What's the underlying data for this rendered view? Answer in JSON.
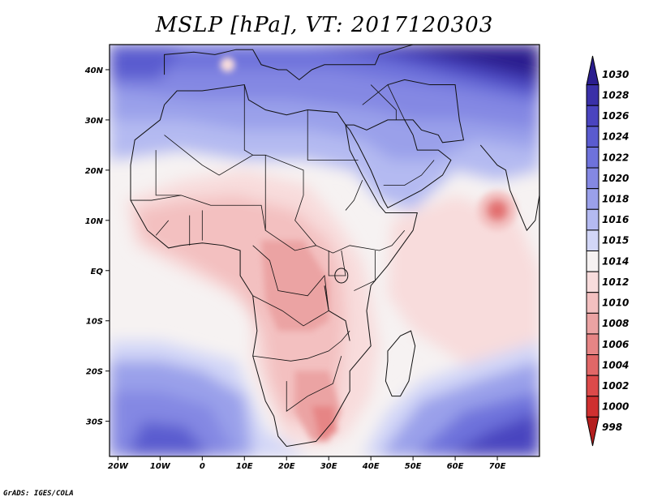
{
  "title": "MSLP [hPa], VT: 2017120303",
  "credit": "GrADS: IGES/COLA",
  "chart_data": {
    "type": "heatmap",
    "title": "MSLP [hPa], VT: 2017120303",
    "variable": "Mean sea level pressure",
    "units": "hPa",
    "valid_time": "2017120303",
    "lon_range": [
      -22,
      80
    ],
    "lat_range": [
      -37,
      45
    ],
    "x_tick_labels": [
      "20W",
      "10W",
      "0",
      "10E",
      "20E",
      "30E",
      "40E",
      "50E",
      "60E",
      "70E"
    ],
    "x_tick_values": [
      -20,
      -10,
      0,
      10,
      20,
      30,
      40,
      50,
      60,
      70
    ],
    "y_tick_labels": [
      "40N",
      "30N",
      "20N",
      "10N",
      "EQ",
      "10S",
      "20S",
      "30S"
    ],
    "y_tick_values": [
      40,
      30,
      20,
      10,
      0,
      -10,
      -20,
      -30
    ],
    "colorbar": {
      "labels": [
        "1030",
        "1028",
        "1026",
        "1024",
        "1022",
        "1020",
        "1018",
        "1016",
        "1015",
        "1014",
        "1012",
        "1010",
        "1008",
        "1006",
        "1004",
        "1002",
        "1000",
        "998"
      ],
      "bounds": [
        1030,
        1028,
        1026,
        1024,
        1022,
        1020,
        1018,
        1016,
        1015,
        1014,
        1012,
        1010,
        1008,
        1006,
        1004,
        1002,
        1000,
        998
      ],
      "colors": [
        "#2a1d8e",
        "#3a30a8",
        "#4a44bf",
        "#5a5bcf",
        "#6e72db",
        "#8488e3",
        "#9aa0ea",
        "#b4baf1",
        "#d2d6f7",
        "#f6f2f2",
        "#f8dcdc",
        "#f3c0c0",
        "#eba3a3",
        "#e68585",
        "#e16767",
        "#dc4a4a",
        "#cf3030",
        "#b41e1e"
      ]
    },
    "features": [
      {
        "name": "low-arabian-sea",
        "type": "low",
        "center_lon": 70,
        "center_lat": 12,
        "min_value": 1004
      },
      {
        "name": "high-central-asia",
        "type": "high",
        "center_lon": 70,
        "center_lat": 42,
        "max_value": 1030
      },
      {
        "name": "high-south-atlantic",
        "type": "high",
        "center_lon": -10,
        "center_lat": -33,
        "max_value": 1024
      },
      {
        "name": "high-south-indian-ocean",
        "type": "high",
        "center_lon": 70,
        "center_lat": -33,
        "max_value": 1026
      }
    ]
  }
}
